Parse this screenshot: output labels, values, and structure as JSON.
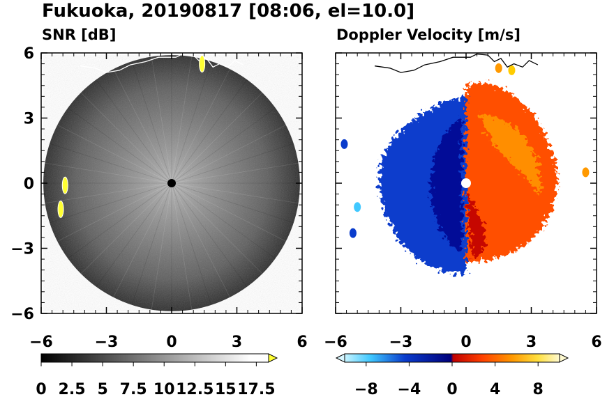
{
  "figure": {
    "title": "Fukuoka, 20190817 [08:06, el=10.0]"
  },
  "chart_data": [
    {
      "type": "heatmap",
      "subtitle": "SNR [dB]",
      "xlim": [
        -6,
        6
      ],
      "ylim": [
        -6,
        6
      ],
      "xticks": [
        "−6",
        "−3",
        "0",
        "3",
        "6"
      ],
      "yticks": [
        "6",
        "3",
        "0",
        "−3",
        "−6"
      ],
      "xtick_values": [
        -6,
        -3,
        0,
        3,
        6
      ],
      "ytick_values": [
        6,
        3,
        0,
        -3,
        -6
      ],
      "radar_range": 5.9,
      "radar_site": [
        0,
        0
      ],
      "colorbar": {
        "min": 0,
        "max": 18.5,
        "extend": "max",
        "labels": [
          "0",
          "2.5",
          "5",
          "7.5",
          "10",
          "12.5",
          "15",
          "17.5"
        ],
        "label_values": [
          0,
          2.5,
          5,
          7.5,
          10,
          12.5,
          15,
          17.5
        ],
        "colors": [
          "#000000",
          "#ffffff",
          "#ffff33"
        ]
      },
      "highlights": [
        {
          "x": 1.4,
          "y": 5.5,
          "color": "#ffff33"
        },
        {
          "x": -5.1,
          "y": -1.2,
          "color": "#ffff33"
        },
        {
          "x": -4.9,
          "y": -0.1,
          "color": "#ffff33"
        }
      ]
    },
    {
      "type": "heatmap",
      "subtitle": "Doppler Velocity [m/s]",
      "xlim": [
        -6,
        6
      ],
      "ylim": [
        -6,
        6
      ],
      "xticks": [
        "−6",
        "−3",
        "0",
        "3",
        "6"
      ],
      "yticks": [
        "6",
        "3",
        "0",
        "−3",
        "−6"
      ],
      "xtick_values": [
        -6,
        -3,
        0,
        3,
        6
      ],
      "ytick_values": [
        6,
        3,
        0,
        -3,
        -6
      ],
      "radar_site": [
        0,
        0
      ],
      "colorbar": {
        "min": -10,
        "max": 10,
        "extend": "both",
        "labels": [
          "−8",
          "−4",
          "0",
          "4",
          "8"
        ],
        "label_values": [
          -8,
          -4,
          0,
          4,
          8
        ],
        "colors": [
          "#d8f6ff",
          "#40c8ff",
          "#0a3ccc",
          "#00007a",
          "#c00000",
          "#ff4000",
          "#ff9900",
          "#ffe040",
          "#fffad0"
        ]
      },
      "echo_regions": [
        {
          "sign": "negative",
          "x_range": [
            -4,
            0
          ],
          "y_range": [
            -4.2,
            4
          ]
        },
        {
          "sign": "positive",
          "x_range": [
            0,
            4.2
          ],
          "y_range": [
            -3.8,
            5.3
          ]
        }
      ],
      "color_scheme": {
        "axes": "#000000",
        "coast": "#000000",
        "radar_site": "#ffffff"
      }
    }
  ],
  "style": {
    "background": "#ffffff",
    "radar_disk": "#555555",
    "site_marker_snr": "#000000",
    "site_marker_vel": "#ffffff",
    "coast_snr": "#ffffff",
    "coast_vel": "#000000"
  }
}
